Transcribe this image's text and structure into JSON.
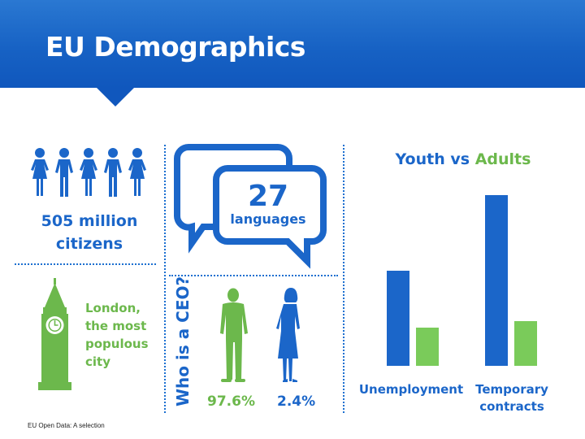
{
  "header": {
    "title": "EU Demographics"
  },
  "population": {
    "line1": "505 million",
    "line2": "citizens"
  },
  "city": {
    "line1": "London,",
    "line2": "the most",
    "line3": "populous",
    "line4": "city"
  },
  "languages": {
    "count": "27",
    "label": "languages"
  },
  "ceo": {
    "label": "Who is a CEO?",
    "male_pct": "97.6%",
    "female_pct": "2.4%"
  },
  "chart_data": {
    "type": "bar",
    "title": "Youth vs Adults",
    "title_parts": {
      "first": "Youth",
      "sep": " vs ",
      "second": "Adults"
    },
    "categories": [
      "Unemployment",
      "Temporary contracts"
    ],
    "category_lines": [
      [
        "Unemployment"
      ],
      [
        "Temporary",
        "contracts"
      ]
    ],
    "series": [
      {
        "name": "Youth",
        "color": "#1b66c9",
        "values": [
          117,
          210
        ]
      },
      {
        "name": "Adults",
        "color": "#7acb5a",
        "values": [
          47,
          55
        ]
      }
    ],
    "ylim": [
      0,
      220
    ],
    "grid": false
  },
  "colors": {
    "blue": "#1b66c9",
    "green": "#6cb84c",
    "header": "#1762c4"
  },
  "footer": {
    "text": "EU Open Data: A selection"
  }
}
